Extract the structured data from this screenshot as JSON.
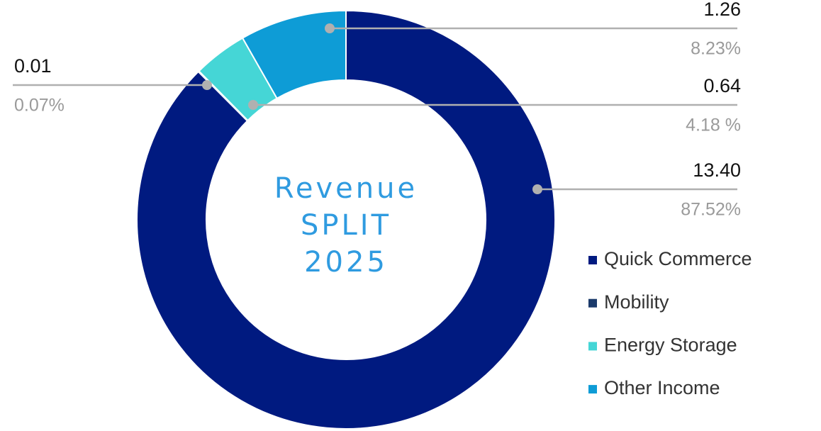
{
  "chart_data": {
    "type": "donut",
    "title_lines": [
      "Revenue",
      "SPLIT",
      "2025"
    ],
    "categories": [
      "Quick Commerce",
      "Mobility",
      "Energy Storage",
      "Other Income"
    ],
    "values": [
      13.4,
      0.01,
      0.64,
      1.26
    ],
    "value_labels": [
      "13.40",
      "0.01",
      "0.64",
      "1.26"
    ],
    "percents": [
      87.52,
      0.07,
      4.18,
      8.23
    ],
    "percent_labels": [
      "87.52%",
      "0.07%",
      "4.18 %",
      "8.23%"
    ],
    "colors": [
      "#001a80",
      "#1b3a6b",
      "#45d6d6",
      "#0e9cd6"
    ],
    "legend": "right"
  }
}
